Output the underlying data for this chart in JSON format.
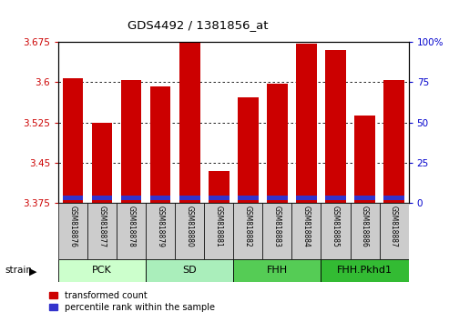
{
  "title": "GDS4492 / 1381856_at",
  "samples": [
    "GSM818876",
    "GSM818877",
    "GSM818878",
    "GSM818879",
    "GSM818880",
    "GSM818881",
    "GSM818882",
    "GSM818883",
    "GSM818884",
    "GSM818885",
    "GSM818886",
    "GSM818887"
  ],
  "groups": [
    {
      "label": "PCK",
      "start": 0,
      "end": 3
    },
    {
      "label": "SD",
      "start": 3,
      "end": 6
    },
    {
      "label": "FHH",
      "start": 6,
      "end": 9
    },
    {
      "label": "FHH.Pkhd1",
      "start": 9,
      "end": 12
    }
  ],
  "y_min": 3.375,
  "y_max": 3.675,
  "y_ticks": [
    3.375,
    3.45,
    3.525,
    3.6,
    3.675
  ],
  "y_tick_labels": [
    "3.375",
    "3.45",
    "3.525",
    "3.6",
    "3.675"
  ],
  "y2_ticks": [
    0,
    25,
    50,
    75,
    100
  ],
  "transformed_count": [
    3.608,
    3.524,
    3.603,
    3.592,
    3.675,
    3.435,
    3.572,
    3.597,
    3.672,
    3.66,
    3.537,
    3.603
  ],
  "blue_bar_height": 0.008,
  "bar_width": 0.7,
  "red_color": "#cc0000",
  "blue_color": "#3333cc",
  "left_axis_color": "#cc0000",
  "right_axis_color": "#0000cc",
  "legend_items": [
    "transformed count",
    "percentile rank within the sample"
  ],
  "legend_colors": [
    "#cc0000",
    "#3333cc"
  ],
  "tick_bg_color": "#cccccc",
  "group_colors": [
    "#ccffcc",
    "#aaeebb",
    "#55cc55",
    "#33bb33"
  ],
  "bg_color": "#ffffff",
  "grid_color": "#000000"
}
